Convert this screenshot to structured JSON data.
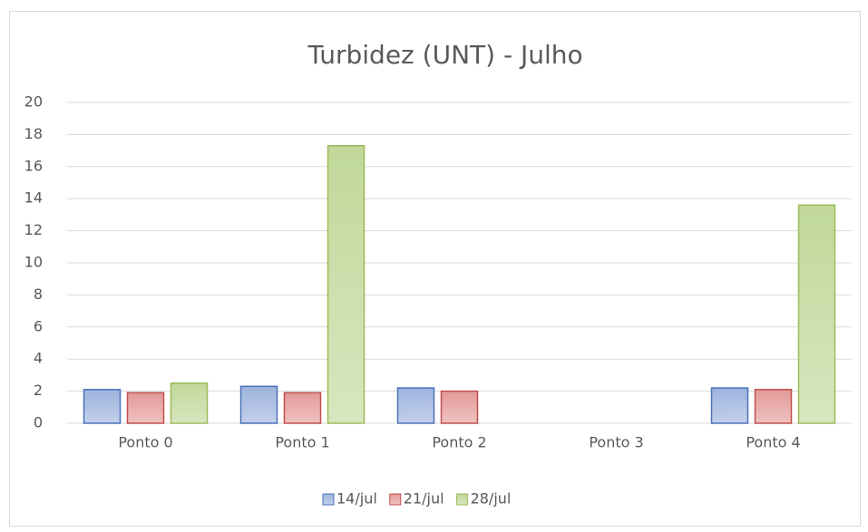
{
  "chart_data": {
    "type": "bar",
    "title": "Turbidez (UNT) - Julho",
    "categories": [
      "Ponto 0",
      "Ponto 1",
      "Ponto 2",
      "Ponto 3",
      "Ponto 4"
    ],
    "series": [
      {
        "name": "14/jul",
        "color": "#4a72b8",
        "values": [
          2.1,
          2.3,
          2.2,
          null,
          2.2
        ]
      },
      {
        "name": "21/jul",
        "color": "#c0504d",
        "values": [
          1.9,
          1.9,
          2.0,
          null,
          2.1
        ]
      },
      {
        "name": "28/jul",
        "color": "#9bbb59",
        "values": [
          2.5,
          17.3,
          null,
          null,
          13.6
        ]
      }
    ],
    "ylim": [
      0,
      20
    ],
    "yticks": [
      0,
      2,
      4,
      6,
      8,
      10,
      12,
      14,
      16,
      18,
      20
    ],
    "grid": true,
    "legend": "bottom"
  }
}
